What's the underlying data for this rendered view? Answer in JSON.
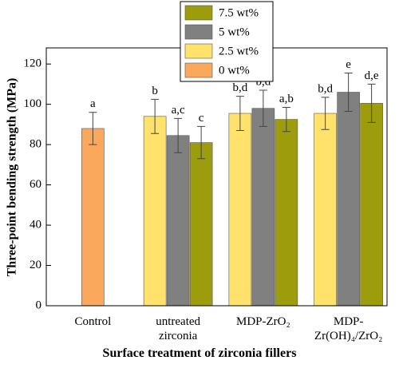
{
  "chart_data": {
    "type": "bar",
    "x_label": "Surface treatment of zirconia fillers",
    "y_label": "Three-point bending strength (MPa)",
    "categories": [
      "Control",
      "untreated zirconia",
      "MDP-ZrO₂",
      "MDP-Zr(OH)₄/ZrO₂"
    ],
    "series": [
      {
        "name": "0 wt%",
        "color": "#f9a85c",
        "values": [
          88,
          null,
          null,
          null
        ],
        "errors": [
          8,
          null,
          null,
          null
        ],
        "labels": [
          "a",
          null,
          null,
          null
        ]
      },
      {
        "name": "2.5 wt%",
        "color": "#ffe26b",
        "values": [
          null,
          94,
          95.5,
          95.5
        ],
        "errors": [
          null,
          8.5,
          8.5,
          8
        ],
        "labels": [
          null,
          "b",
          "b,d",
          "b,d"
        ]
      },
      {
        "name": "5 wt%",
        "color": "#808080",
        "values": [
          null,
          84.5,
          98,
          106
        ],
        "errors": [
          null,
          8.5,
          9,
          9.5
        ],
        "labels": [
          null,
          "a,c",
          "b,d",
          "e"
        ]
      },
      {
        "name": "7.5 wt%",
        "color": "#9c9c0c",
        "values": [
          null,
          81,
          92.5,
          100.5
        ],
        "errors": [
          null,
          8,
          6,
          9.5
        ],
        "labels": [
          null,
          "c",
          "a,b",
          "d,e"
        ]
      }
    ],
    "ylim": [
      0,
      128
    ],
    "yticks": [
      0,
      20,
      40,
      60,
      80,
      100,
      120
    ],
    "legend": "top-center"
  }
}
